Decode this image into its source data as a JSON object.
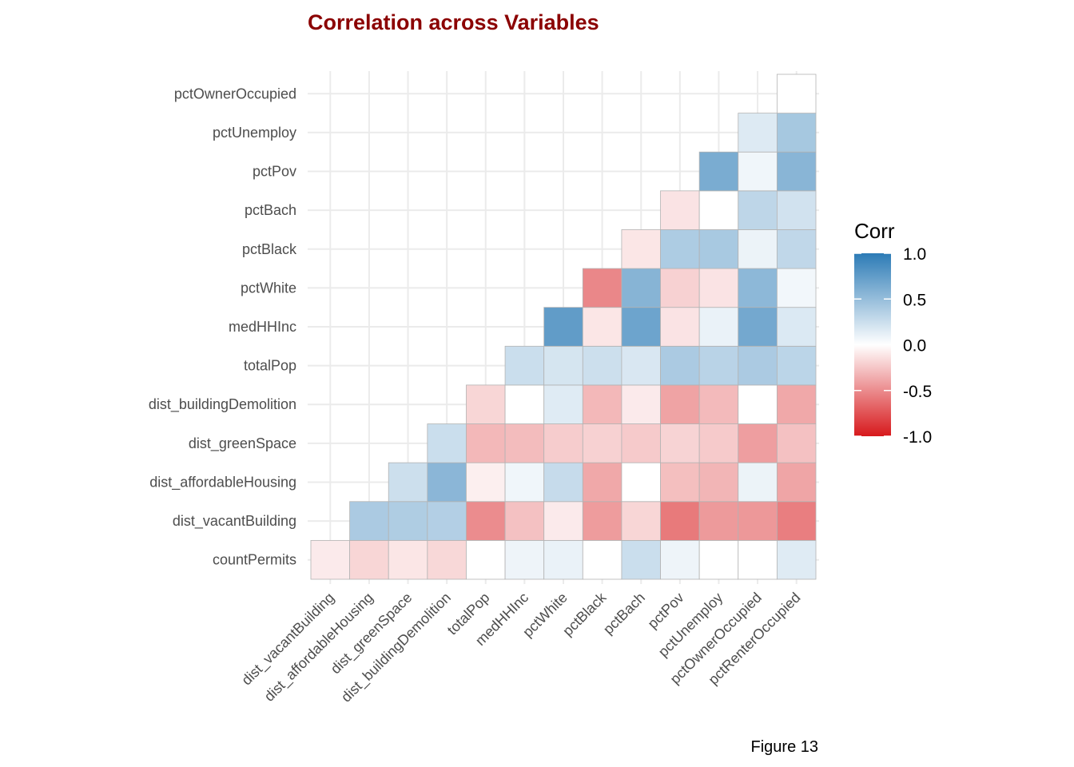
{
  "chart_data": {
    "type": "heatmap",
    "title": "Correlation across Variables",
    "caption": "Figure 13",
    "x_labels": [
      "dist_vacantBuilding",
      "dist_affordableHousing",
      "dist_greenSpace",
      "dist_buildingDemolition",
      "totalPop",
      "medHHInc",
      "pctWhite",
      "pctBlack",
      "pctBach",
      "pctPov",
      "pctUnemploy",
      "pctOwnerOccupied",
      "pctRenterOccupied"
    ],
    "y_labels": [
      "countPermits",
      "dist_vacantBuilding",
      "dist_affordableHousing",
      "dist_greenSpace",
      "dist_buildingDemolition",
      "totalPop",
      "medHHInc",
      "pctWhite",
      "pctBlack",
      "pctBach",
      "pctPov",
      "pctUnemploy",
      "pctOwnerOccupied"
    ],
    "values": [
      [
        -0.09,
        -0.18,
        -0.11,
        -0.17,
        0.0,
        0.08,
        0.1,
        0.0,
        0.25,
        0.08,
        0.0,
        0.0,
        0.15
      ],
      [
        null,
        0.4,
        0.38,
        0.36,
        -0.5,
        -0.27,
        -0.09,
        -0.43,
        -0.18,
        -0.58,
        -0.44,
        -0.45,
        -0.56
      ],
      [
        null,
        null,
        0.24,
        0.55,
        -0.07,
        0.07,
        0.27,
        -0.38,
        0.0,
        -0.28,
        -0.32,
        0.09,
        -0.39
      ],
      [
        null,
        null,
        null,
        0.25,
        -0.31,
        -0.29,
        -0.22,
        -0.2,
        -0.23,
        -0.19,
        -0.23,
        -0.42,
        -0.27
      ],
      [
        null,
        null,
        null,
        null,
        -0.18,
        0.0,
        0.15,
        -0.31,
        -0.09,
        -0.4,
        -0.3,
        0.0,
        -0.38
      ],
      [
        null,
        null,
        null,
        null,
        null,
        0.25,
        0.2,
        0.24,
        0.18,
        0.4,
        0.33,
        0.4,
        0.32
      ],
      [
        null,
        null,
        null,
        null,
        null,
        null,
        0.75,
        -0.11,
        0.69,
        -0.12,
        0.1,
        0.66,
        0.17
      ],
      [
        null,
        null,
        null,
        null,
        null,
        null,
        null,
        -0.52,
        0.57,
        -0.2,
        -0.12,
        0.54,
        0.06
      ],
      [
        null,
        null,
        null,
        null,
        null,
        null,
        null,
        null,
        -0.11,
        0.39,
        0.41,
        0.09,
        0.3
      ],
      [
        null,
        null,
        null,
        null,
        null,
        null,
        null,
        null,
        null,
        -0.12,
        0.0,
        0.31,
        0.22
      ],
      [
        null,
        null,
        null,
        null,
        null,
        null,
        null,
        null,
        null,
        null,
        0.63,
        0.07,
        0.56
      ],
      [
        null,
        null,
        null,
        null,
        null,
        null,
        null,
        null,
        null,
        null,
        null,
        0.16,
        0.42
      ],
      [
        null,
        null,
        null,
        null,
        null,
        null,
        null,
        null,
        null,
        null,
        null,
        null,
        0.0
      ]
    ],
    "legend": {
      "title": "Corr",
      "ticks": [
        "1.0",
        "0.5",
        "0.0",
        "-0.5",
        "-1.0"
      ],
      "tick_values": [
        1.0,
        0.5,
        0.0,
        -0.5,
        -1.0
      ],
      "position": "right"
    },
    "grid": true,
    "colors": {
      "low": "#d7191c",
      "mid": "#ffffff",
      "high": "#2c7bb6",
      "title": "#8b0000",
      "grid": "#ebebeb",
      "tile_border": "#b3b3b3"
    }
  }
}
